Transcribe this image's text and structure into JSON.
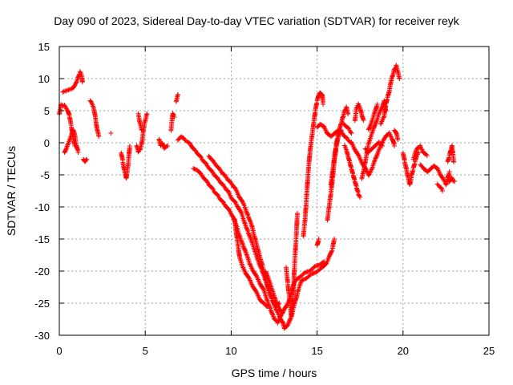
{
  "chart_data": {
    "type": "scatter",
    "title": "Day 090 of 2023, Sidereal Day-to-day VTEC variation (SDTVAR) for receiver reyk",
    "xlabel": "GPS time / hours",
    "ylabel": "SDTVAR / TECUs",
    "xlim": [
      0,
      25
    ],
    "ylim": [
      -30,
      15
    ],
    "xticks": [
      0,
      5,
      10,
      15,
      20,
      25
    ],
    "yticks": [
      -30,
      -25,
      -20,
      -15,
      -10,
      -5,
      0,
      5,
      10,
      15
    ],
    "grid": true,
    "marker": "+",
    "series_color": "#ff0000",
    "segments": [
      [
        [
          0.0,
          4.5
        ],
        [
          0.1,
          6.0
        ],
        [
          0.3,
          5.8
        ],
        [
          0.5,
          5.0
        ],
        [
          0.6,
          4.0
        ],
        [
          0.7,
          2.5
        ],
        [
          0.8,
          1.0
        ],
        [
          0.9,
          -0.5
        ]
      ],
      [
        [
          0.2,
          8.0
        ],
        [
          0.4,
          8.2
        ],
        [
          0.6,
          8.4
        ],
        [
          0.8,
          8.6
        ],
        [
          1.0,
          9.5
        ],
        [
          1.1,
          10.3
        ],
        [
          1.2,
          11.0
        ],
        [
          1.3,
          10.5
        ],
        [
          1.35,
          9.5
        ]
      ],
      [
        [
          0.3,
          -1.5
        ],
        [
          0.5,
          -0.2
        ],
        [
          0.7,
          1.0
        ],
        [
          0.8,
          2.0
        ],
        [
          0.9,
          1.2
        ],
        [
          1.0,
          -0.5
        ],
        [
          1.1,
          -1.5
        ]
      ],
      [
        [
          1.4,
          -2.5
        ],
        [
          1.5,
          -3.0
        ],
        [
          1.6,
          -2.6
        ]
      ],
      [
        [
          1.8,
          6.5
        ],
        [
          2.0,
          5.5
        ],
        [
          2.1,
          4.0
        ],
        [
          2.2,
          2.0
        ],
        [
          2.3,
          1.0
        ]
      ],
      [
        [
          3.0,
          1.5
        ]
      ],
      [
        [
          3.6,
          -1.5
        ],
        [
          3.7,
          -3.0
        ],
        [
          3.8,
          -4.5
        ],
        [
          3.9,
          -5.5
        ],
        [
          4.0,
          -3.5
        ],
        [
          4.1,
          -0.5
        ]
      ],
      [
        [
          4.5,
          -0.5
        ],
        [
          4.6,
          -1.5
        ],
        [
          4.7,
          -1.0
        ],
        [
          4.8,
          0.0
        ],
        [
          4.9,
          2.0
        ],
        [
          5.0,
          3.5
        ],
        [
          5.1,
          4.5
        ]
      ],
      [
        [
          4.6,
          4.5
        ],
        [
          4.7,
          3.0
        ],
        [
          4.8,
          2.0
        ]
      ],
      [
        [
          5.8,
          0.5
        ],
        [
          5.9,
          -0.5
        ],
        [
          6.0,
          0.0
        ],
        [
          6.1,
          -0.8
        ],
        [
          6.3,
          -0.5
        ]
      ],
      [
        [
          6.5,
          2.0
        ],
        [
          6.6,
          4.5
        ],
        [
          6.7,
          4.0
        ]
      ],
      [
        [
          6.8,
          6.5
        ],
        [
          6.9,
          7.5
        ]
      ],
      [
        [
          6.9,
          0.5
        ],
        [
          7.1,
          1.0
        ],
        [
          7.3,
          0.5
        ],
        [
          7.6,
          0.0
        ],
        [
          7.8,
          -1.0
        ],
        [
          8.0,
          -1.5
        ],
        [
          8.3,
          -2.5
        ],
        [
          8.6,
          -3.5
        ],
        [
          8.9,
          -4.5
        ],
        [
          9.2,
          -5.5
        ],
        [
          9.5,
          -6.5
        ],
        [
          9.8,
          -7.5
        ],
        [
          10.0,
          -8.5
        ],
        [
          10.3,
          -9.5
        ],
        [
          10.6,
          -11.0
        ],
        [
          10.8,
          -12.5
        ],
        [
          11.0,
          -14.0
        ],
        [
          11.2,
          -15.5
        ],
        [
          11.4,
          -17.0
        ],
        [
          11.6,
          -18.5
        ],
        [
          11.8,
          -20.0
        ],
        [
          12.0,
          -21.5
        ],
        [
          12.2,
          -23.0
        ],
        [
          12.4,
          -24.5
        ],
        [
          12.6,
          -26.0
        ],
        [
          12.8,
          -27.0
        ],
        [
          13.0,
          -28.0
        ],
        [
          13.1,
          -29.0
        ],
        [
          13.3,
          -28.5
        ],
        [
          13.5,
          -27.0
        ],
        [
          13.7,
          -25.0
        ],
        [
          13.9,
          -23.0
        ],
        [
          14.1,
          -21.5
        ],
        [
          14.4,
          -21.0
        ],
        [
          14.7,
          -20.5
        ],
        [
          15.0,
          -20.0
        ],
        [
          15.3,
          -19.5
        ],
        [
          15.6,
          -18.5
        ],
        [
          15.9,
          -16.5
        ],
        [
          16.0,
          -15.0
        ]
      ],
      [
        [
          7.8,
          -4.0
        ],
        [
          8.1,
          -4.5
        ],
        [
          8.4,
          -5.5
        ],
        [
          8.7,
          -6.5
        ],
        [
          9.0,
          -7.5
        ],
        [
          9.3,
          -8.5
        ],
        [
          9.6,
          -9.5
        ],
        [
          9.9,
          -10.5
        ],
        [
          10.1,
          -11.5
        ],
        [
          10.3,
          -13.0
        ],
        [
          10.5,
          -14.5
        ],
        [
          10.7,
          -16.0
        ],
        [
          10.9,
          -17.5
        ],
        [
          11.1,
          -19.0
        ],
        [
          11.3,
          -20.0
        ],
        [
          11.5,
          -21.0
        ],
        [
          11.7,
          -22.0
        ],
        [
          11.9,
          -23.0
        ],
        [
          12.1,
          -24.5
        ],
        [
          12.3,
          -26.0
        ],
        [
          12.5,
          -27.5
        ],
        [
          12.7,
          -28.0
        ],
        [
          12.9,
          -27.0
        ],
        [
          13.1,
          -26.0
        ],
        [
          13.3,
          -25.0
        ],
        [
          13.5,
          -23.5
        ],
        [
          13.7,
          -21.5
        ],
        [
          13.9,
          -21.0
        ],
        [
          14.2,
          -20.5
        ],
        [
          14.5,
          -20.0
        ],
        [
          14.8,
          -19.5
        ],
        [
          15.1,
          -19.0
        ],
        [
          15.4,
          -18.5
        ]
      ],
      [
        [
          8.7,
          -2.0
        ],
        [
          9.0,
          -3.0
        ],
        [
          9.3,
          -4.0
        ],
        [
          9.6,
          -5.0
        ],
        [
          9.9,
          -6.0
        ],
        [
          10.2,
          -7.0
        ],
        [
          10.5,
          -8.5
        ],
        [
          10.8,
          -10.0
        ],
        [
          11.0,
          -11.5
        ],
        [
          11.2,
          -13.0
        ],
        [
          11.4,
          -15.0
        ],
        [
          11.6,
          -17.0
        ],
        [
          11.8,
          -19.0
        ],
        [
          12.0,
          -21.0
        ],
        [
          12.2,
          -23.0
        ],
        [
          12.4,
          -24.5
        ],
        [
          12.6,
          -25.5
        ],
        [
          12.8,
          -25.0
        ]
      ],
      [
        [
          10.2,
          -12.0
        ],
        [
          10.3,
          -14.0
        ],
        [
          10.4,
          -16.0
        ],
        [
          10.5,
          -18.0
        ],
        [
          10.7,
          -19.5
        ],
        [
          10.9,
          -20.5
        ],
        [
          11.1,
          -21.5
        ],
        [
          11.3,
          -22.5
        ],
        [
          11.5,
          -23.5
        ],
        [
          11.7,
          -24.5
        ],
        [
          11.9,
          -25.0
        ],
        [
          12.1,
          -25.5
        ]
      ],
      [
        [
          12.0,
          -20.0
        ],
        [
          12.2,
          -21.5
        ],
        [
          12.4,
          -23.0
        ],
        [
          12.6,
          -24.5
        ],
        [
          12.8,
          -26.0
        ],
        [
          13.0,
          -26.5
        ]
      ],
      [
        [
          13.2,
          -19.5
        ],
        [
          13.3,
          -22.0
        ],
        [
          13.4,
          -24.5
        ],
        [
          13.5,
          -27.0
        ],
        [
          13.6,
          -24.0
        ],
        [
          13.7,
          -18.5
        ],
        [
          13.8,
          -14.0
        ],
        [
          13.85,
          -11.0
        ]
      ],
      [
        [
          14.2,
          -14.5
        ],
        [
          14.3,
          -12.0
        ],
        [
          14.4,
          -8.0
        ],
        [
          14.5,
          -4.0
        ],
        [
          14.6,
          -1.0
        ],
        [
          14.7,
          1.0
        ],
        [
          14.8,
          3.0
        ],
        [
          14.9,
          5.0
        ],
        [
          15.0,
          6.5
        ],
        [
          15.1,
          7.5
        ],
        [
          15.2,
          7.8
        ],
        [
          15.3,
          7.5
        ],
        [
          15.35,
          6.0
        ]
      ],
      [
        [
          15.0,
          -16.0
        ],
        [
          15.1,
          -15.0
        ]
      ],
      [
        [
          15.0,
          2.5
        ],
        [
          15.2,
          3.0
        ],
        [
          15.4,
          2.5
        ],
        [
          15.6,
          1.5
        ],
        [
          15.8,
          1.0
        ],
        [
          16.0,
          1.5
        ],
        [
          16.2,
          2.0
        ],
        [
          16.4,
          1.8
        ],
        [
          16.6,
          1.0
        ],
        [
          16.8,
          0.5
        ],
        [
          17.0,
          0.0
        ],
        [
          17.2,
          -1.0
        ],
        [
          17.4,
          -2.0
        ],
        [
          17.6,
          -3.0
        ],
        [
          17.8,
          -4.0
        ],
        [
          18.0,
          -5.0
        ],
        [
          18.2,
          -4.0
        ],
        [
          18.4,
          -2.5
        ],
        [
          18.6,
          -1.0
        ],
        [
          18.8,
          0.0
        ],
        [
          19.0,
          1.0
        ],
        [
          19.2,
          1.5
        ],
        [
          19.4,
          0.5
        ],
        [
          19.5,
          -0.5
        ]
      ],
      [
        [
          15.6,
          -12.0
        ],
        [
          15.7,
          -10.0
        ],
        [
          15.8,
          -8.0
        ],
        [
          15.9,
          -5.5
        ],
        [
          16.0,
          -3.0
        ],
        [
          16.1,
          -1.0
        ],
        [
          16.2,
          0.5
        ],
        [
          16.3,
          1.5
        ],
        [
          16.4,
          2.0
        ]
      ],
      [
        [
          15.8,
          -6.5
        ],
        [
          15.9,
          -4.5
        ],
        [
          16.0,
          -2.5
        ],
        [
          16.1,
          -0.5
        ],
        [
          16.2,
          1.0
        ],
        [
          16.3,
          2.0
        ],
        [
          16.4,
          3.0
        ],
        [
          16.5,
          4.0
        ],
        [
          16.6,
          5.0
        ],
        [
          16.7,
          5.5
        ],
        [
          16.8,
          4.5
        ]
      ],
      [
        [
          16.5,
          3.0
        ],
        [
          16.7,
          2.5
        ],
        [
          16.9,
          2.0
        ],
        [
          17.0,
          1.5
        ]
      ],
      [
        [
          16.6,
          -0.5
        ],
        [
          16.7,
          -1.0
        ],
        [
          16.8,
          -2.0
        ],
        [
          16.9,
          -3.0
        ],
        [
          17.0,
          -4.0
        ],
        [
          17.1,
          -5.0
        ],
        [
          17.2,
          -6.0
        ],
        [
          17.3,
          -7.0
        ],
        [
          17.4,
          -8.0
        ],
        [
          17.5,
          -8.5
        ]
      ],
      [
        [
          17.2,
          3.5
        ],
        [
          17.3,
          5.5
        ],
        [
          17.4,
          6.0
        ],
        [
          17.5,
          5.5
        ],
        [
          17.6,
          4.5
        ],
        [
          17.7,
          3.5
        ]
      ],
      [
        [
          17.6,
          -5.5
        ],
        [
          17.7,
          -4.5
        ],
        [
          17.8,
          -3.0
        ],
        [
          17.9,
          -1.5
        ],
        [
          18.0,
          0.0
        ],
        [
          18.2,
          1.5
        ],
        [
          18.4,
          3.0
        ],
        [
          18.6,
          4.5
        ],
        [
          18.8,
          5.5
        ],
        [
          18.9,
          6.5
        ],
        [
          19.0,
          5.0
        ]
      ],
      [
        [
          17.8,
          -1.0
        ],
        [
          18.0,
          -1.5
        ],
        [
          18.2,
          -1.0
        ],
        [
          18.4,
          -0.5
        ],
        [
          18.6,
          0.0
        ],
        [
          18.8,
          -0.5
        ]
      ],
      [
        [
          18.0,
          2.0
        ],
        [
          18.2,
          3.5
        ],
        [
          18.4,
          5.0
        ],
        [
          18.5,
          6.0
        ]
      ],
      [
        [
          18.7,
          3.0
        ],
        [
          18.9,
          4.0
        ],
        [
          19.0,
          6.0
        ],
        [
          19.1,
          7.0
        ],
        [
          19.2,
          8.0
        ],
        [
          19.3,
          9.5
        ],
        [
          19.4,
          10.5
        ],
        [
          19.5,
          11.5
        ],
        [
          19.6,
          12.0
        ],
        [
          19.7,
          11.0
        ],
        [
          19.8,
          10.0
        ]
      ],
      [
        [
          19.5,
          2.0
        ],
        [
          19.6,
          1.5
        ],
        [
          19.7,
          0.5
        ]
      ],
      [
        [
          20.0,
          -1.5
        ],
        [
          20.1,
          -3.0
        ],
        [
          20.2,
          -4.0
        ],
        [
          20.3,
          -5.5
        ],
        [
          20.4,
          -6.5
        ],
        [
          20.5,
          -5.0
        ],
        [
          20.6,
          -4.0
        ],
        [
          20.7,
          -3.0
        ],
        [
          20.8,
          -2.0
        ],
        [
          20.9,
          -1.5
        ]
      ],
      [
        [
          20.6,
          -2.5
        ],
        [
          20.8,
          -1.0
        ],
        [
          21.0,
          -0.5
        ],
        [
          21.2,
          -1.5
        ],
        [
          21.4,
          -2.0
        ]
      ],
      [
        [
          21.0,
          -3.5
        ],
        [
          21.2,
          -4.0
        ],
        [
          21.4,
          -4.5
        ],
        [
          21.6,
          -4.0
        ],
        [
          21.8,
          -3.5
        ],
        [
          22.0,
          -4.0
        ],
        [
          22.2,
          -5.0
        ],
        [
          22.4,
          -6.0
        ],
        [
          22.5,
          -6.5
        ],
        [
          22.6,
          -5.5
        ],
        [
          22.7,
          -4.5
        ]
      ],
      [
        [
          22.0,
          -6.5
        ],
        [
          22.2,
          -7.0
        ],
        [
          22.3,
          -7.5
        ]
      ],
      [
        [
          22.6,
          -3.0
        ],
        [
          22.7,
          -2.0
        ],
        [
          22.8,
          -1.0
        ],
        [
          22.85,
          -0.5
        ],
        [
          22.9,
          -1.5
        ],
        [
          22.95,
          -3.0
        ]
      ],
      [
        [
          22.6,
          -5.5
        ],
        [
          22.7,
          -6.0
        ],
        [
          22.8,
          -5.5
        ],
        [
          22.9,
          -5.8
        ],
        [
          23.0,
          -6.0
        ]
      ]
    ]
  }
}
